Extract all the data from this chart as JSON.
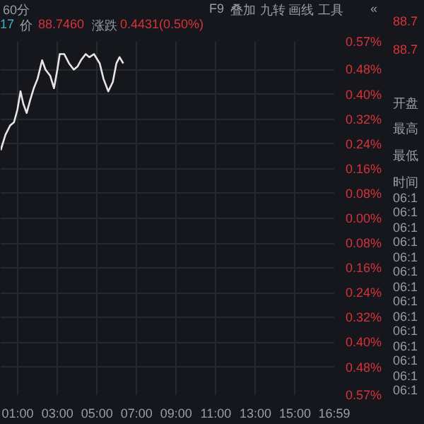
{
  "chart_data": {
    "type": "line",
    "x": [
      0.14,
      0.38,
      0.62,
      0.81,
      0.98,
      1.14,
      1.28,
      1.45,
      1.62,
      1.81,
      2.0,
      2.23,
      2.4,
      2.64,
      2.83,
      3.0,
      3.12,
      3.35,
      3.59,
      3.83,
      4.02,
      4.19,
      4.43,
      4.62,
      4.85,
      5.14,
      5.33,
      5.57,
      5.8,
      5.98,
      6.14,
      6.33
    ],
    "series": [
      {
        "color": "#e6e6e6",
        "values": [
          0.22,
          0.27,
          0.3,
          0.31,
          0.35,
          0.41,
          0.37,
          0.34,
          0.38,
          0.42,
          0.45,
          0.51,
          0.48,
          0.46,
          0.42,
          0.48,
          0.53,
          0.53,
          0.5,
          0.48,
          0.49,
          0.51,
          0.53,
          0.52,
          0.53,
          0.5,
          0.45,
          0.41,
          0.44,
          0.5,
          0.52,
          0.5
        ]
      }
    ],
    "xlim": [
      0.14,
      16.98
    ],
    "xticks": [
      {
        "value": 1,
        "label": "01:00"
      },
      {
        "value": 3,
        "label": "03:00"
      },
      {
        "value": 5,
        "label": "05:00"
      },
      {
        "value": 7,
        "label": "07:00"
      },
      {
        "value": 9,
        "label": "09:00"
      },
      {
        "value": 11,
        "label": "11:00"
      },
      {
        "value": 13,
        "label": "13:00"
      },
      {
        "value": 15,
        "label": "15:00"
      },
      {
        "value": 16.98,
        "label": "16:59"
      }
    ],
    "ylim": [
      -0.57,
      0.57
    ],
    "yticks": [
      {
        "value": 0.57,
        "label": "0.57%"
      },
      {
        "value": 0.48,
        "label": "0.48%"
      },
      {
        "value": 0.4,
        "label": "0.40%"
      },
      {
        "value": 0.32,
        "label": "0.32%"
      },
      {
        "value": 0.24,
        "label": "0.24%"
      },
      {
        "value": 0.16,
        "label": "0.16%"
      },
      {
        "value": 0.08,
        "label": "0.08%"
      },
      {
        "value": 0,
        "label": "0.00%"
      },
      {
        "value": -0.08,
        "label": "0.08%"
      },
      {
        "value": -0.16,
        "label": "0.16%"
      },
      {
        "value": -0.24,
        "label": "0.24%"
      },
      {
        "value": -0.32,
        "label": "0.32%"
      },
      {
        "value": -0.4,
        "label": "0.40%"
      },
      {
        "value": -0.48,
        "label": "0.48%"
      },
      {
        "value": -0.57,
        "label": "0.57%"
      }
    ],
    "grid": true,
    "annotations": [
      "60分",
      "17",
      "价",
      "88.7460",
      "涨跌",
      "0.4431(0.50%)",
      "F9",
      "叠加",
      "九转",
      "画线",
      "工具",
      "«",
      "88.7",
      "88.7",
      "开盘",
      "最高",
      "最低",
      "时间",
      "06:1",
      "06:1",
      "06:1",
      "06:1",
      "06:1",
      "06:1",
      "06:1",
      "06:1",
      "06:1",
      "06:1",
      "06:1",
      "06:1",
      "06:1",
      "06:1"
    ]
  }
}
